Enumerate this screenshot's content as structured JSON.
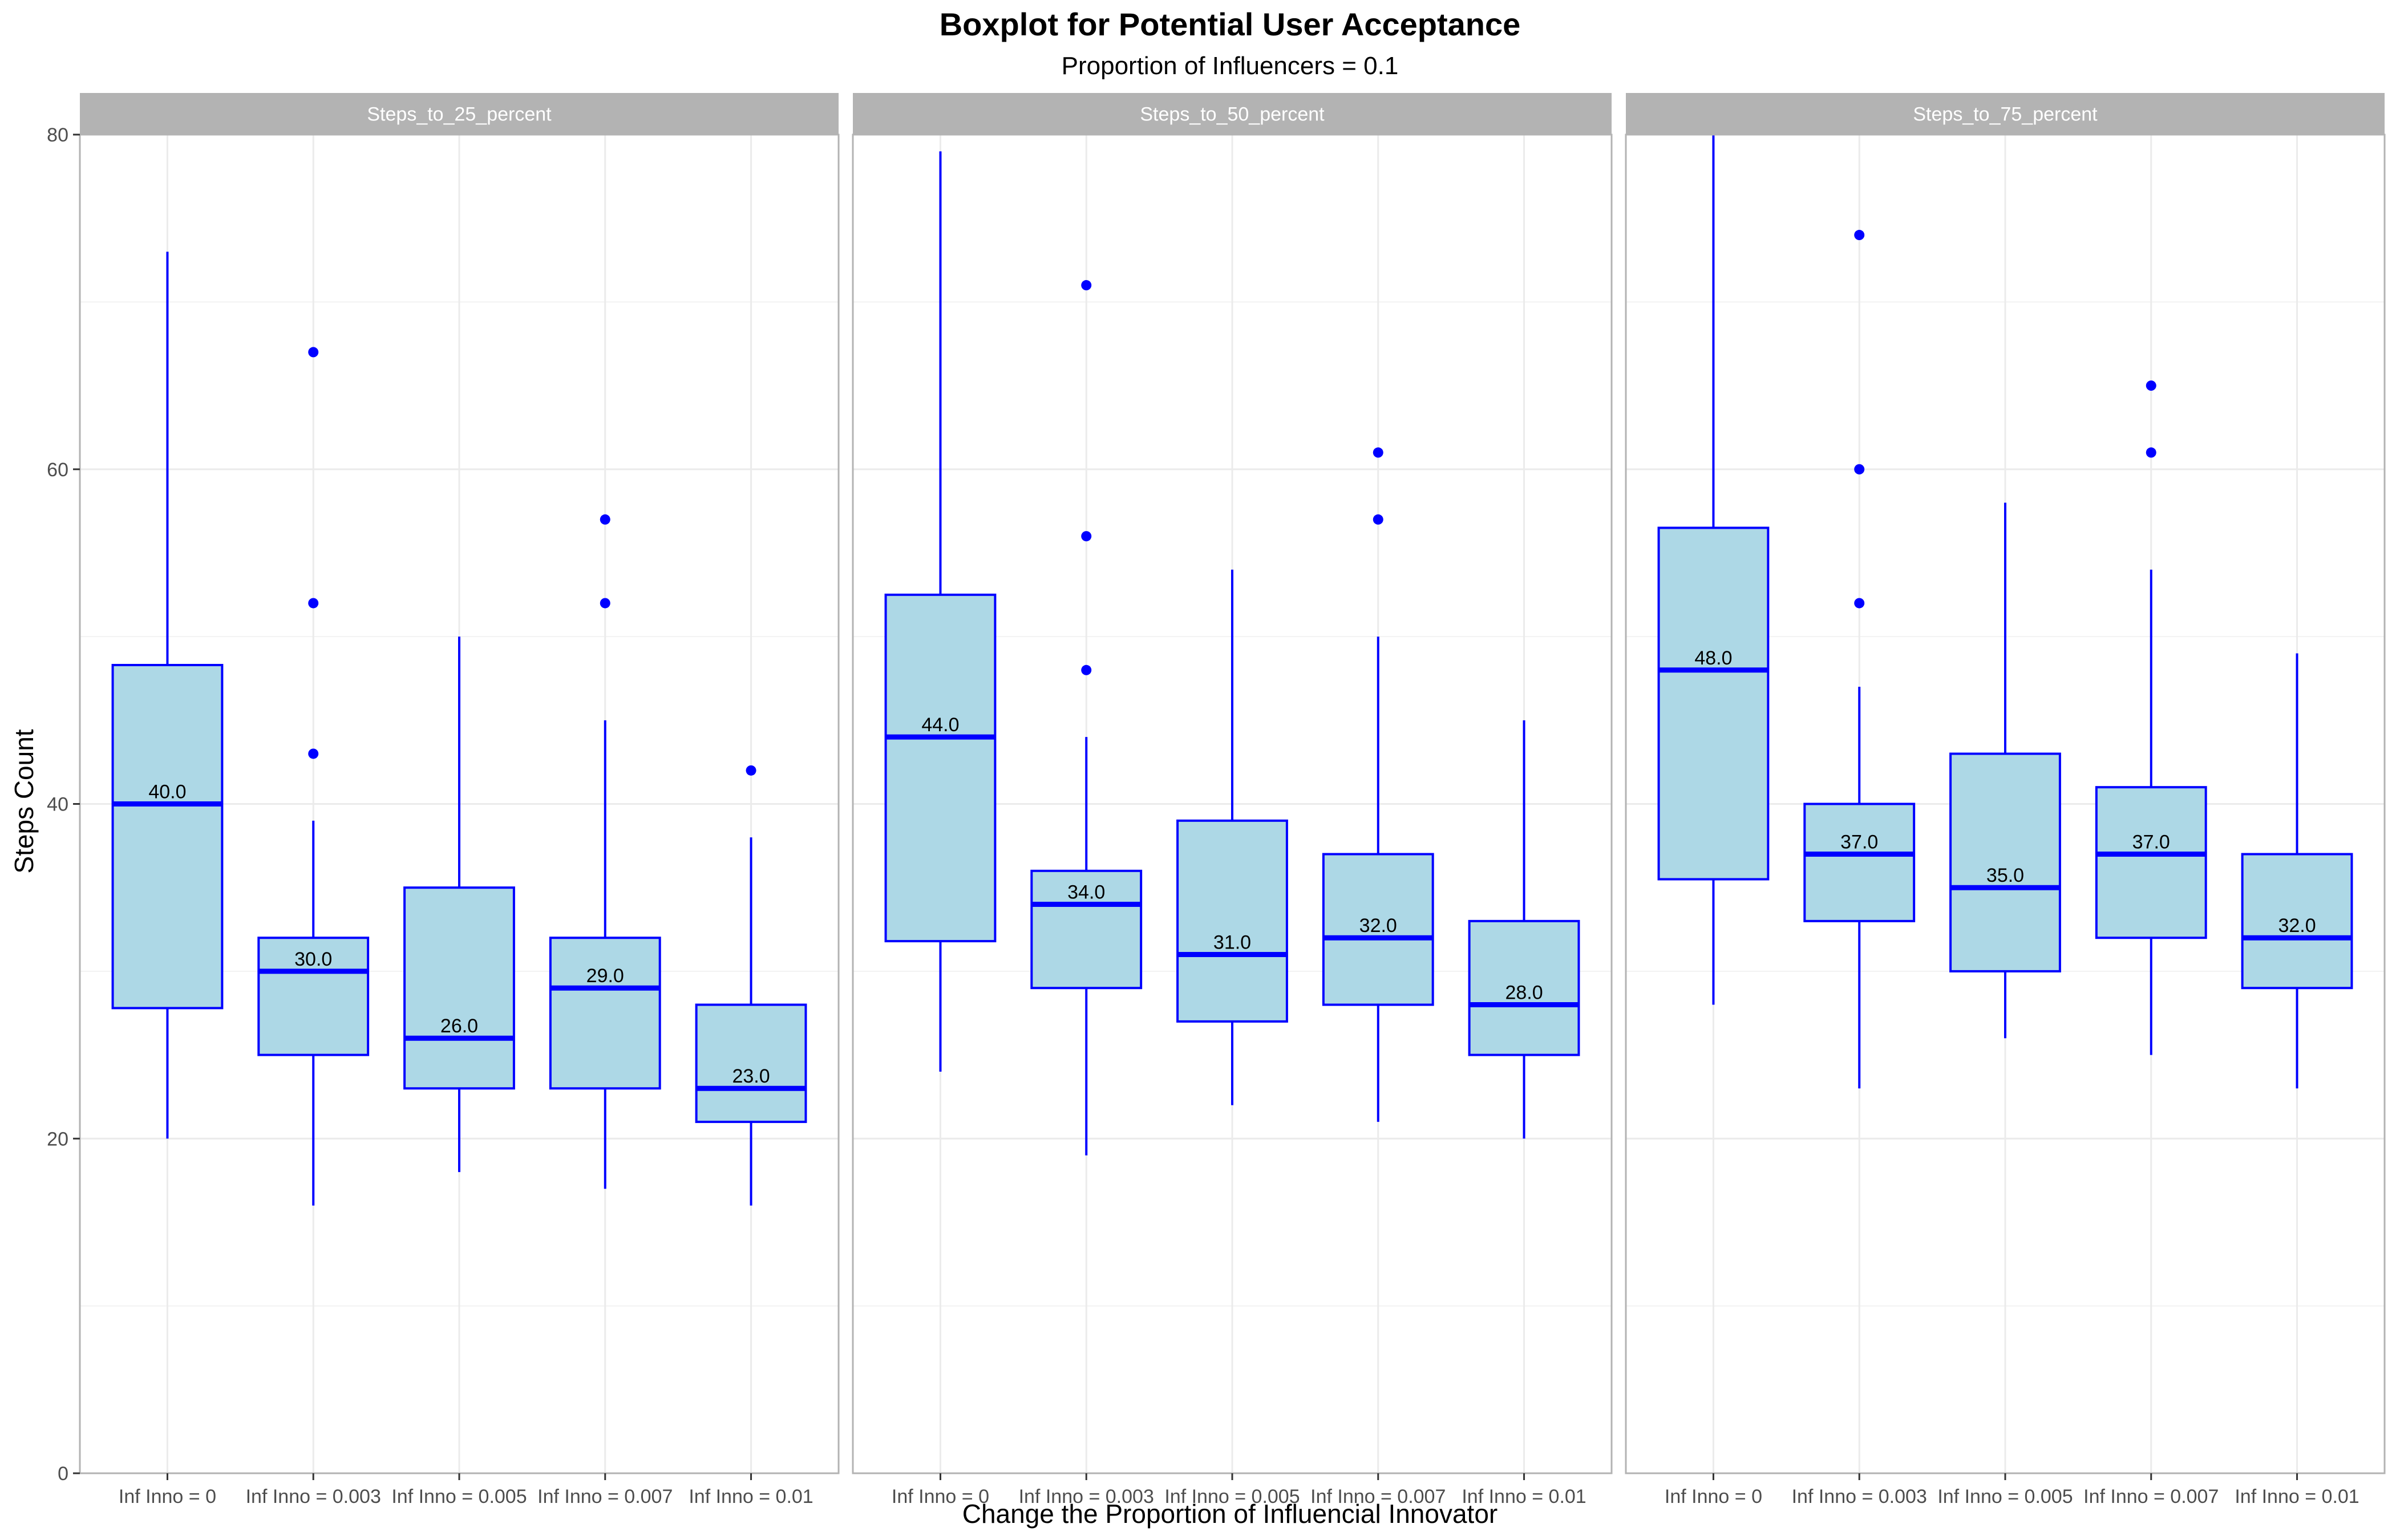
{
  "chart_data": {
    "type": "boxplot",
    "title": "Boxplot for Potential User Acceptance",
    "subtitle": "Proportion of Influencers = 0.1",
    "xlabel": "Change the Proportion of Influencial Innovator",
    "ylabel": "Steps Count",
    "ylim": [
      0,
      80
    ],
    "yticks": [
      "0",
      "20",
      "40",
      "60",
      "80"
    ],
    "categories": [
      "Inf Inno = 0",
      "Inf Inno = 0.003",
      "Inf Inno = 0.005",
      "Inf Inno = 0.007",
      "Inf Inno = 0.01"
    ],
    "grid": true,
    "colors": {
      "box_fill": "#add8e6",
      "box_line": "#0000ff",
      "strip": "#b3b3b3",
      "grid": "#ebebeb"
    },
    "panels": [
      {
        "name": "Steps_to_25_percent",
        "boxes": [
          {
            "category": "Inf Inno = 0",
            "whisker_low": 20,
            "q1": 27.8,
            "median": 40,
            "q3": 48.3,
            "whisker_high": 73,
            "outliers": [],
            "median_label": "40.0"
          },
          {
            "category": "Inf Inno = 0.003",
            "whisker_low": 16,
            "q1": 25,
            "median": 30,
            "q3": 32,
            "whisker_high": 39,
            "outliers": [
              43,
              52,
              67
            ],
            "median_label": "30.0"
          },
          {
            "category": "Inf Inno = 0.005",
            "whisker_low": 18,
            "q1": 23,
            "median": 26,
            "q3": 35,
            "whisker_high": 50,
            "outliers": [],
            "median_label": "26.0"
          },
          {
            "category": "Inf Inno = 0.007",
            "whisker_low": 17,
            "q1": 23,
            "median": 29,
            "q3": 32,
            "whisker_high": 45,
            "outliers": [
              52,
              57
            ],
            "median_label": "29.0"
          },
          {
            "category": "Inf Inno = 0.01",
            "whisker_low": 16,
            "q1": 21,
            "median": 23,
            "q3": 28,
            "whisker_high": 38,
            "outliers": [
              42
            ],
            "median_label": "23.0"
          }
        ]
      },
      {
        "name": "Steps_to_50_percent",
        "boxes": [
          {
            "category": "Inf Inno = 0",
            "whisker_low": 24,
            "q1": 31.8,
            "median": 44,
            "q3": 52.5,
            "whisker_high": 79,
            "outliers": [],
            "median_label": "44.0"
          },
          {
            "category": "Inf Inno = 0.003",
            "whisker_low": 19,
            "q1": 29,
            "median": 34,
            "q3": 36,
            "whisker_high": 44,
            "outliers": [
              48,
              56,
              71
            ],
            "median_label": "34.0"
          },
          {
            "category": "Inf Inno = 0.005",
            "whisker_low": 22,
            "q1": 27,
            "median": 31,
            "q3": 39,
            "whisker_high": 54,
            "outliers": [],
            "median_label": "31.0"
          },
          {
            "category": "Inf Inno = 0.007",
            "whisker_low": 21,
            "q1": 28,
            "median": 32,
            "q3": 37,
            "whisker_high": 50,
            "outliers": [
              57,
              61
            ],
            "median_label": "32.0"
          },
          {
            "category": "Inf Inno = 0.01",
            "whisker_low": 20,
            "q1": 25,
            "median": 28,
            "q3": 33,
            "whisker_high": 45,
            "outliers": [],
            "median_label": "28.0"
          }
        ]
      },
      {
        "name": "Steps_to_75_percent",
        "boxes": [
          {
            "category": "Inf Inno = 0",
            "whisker_low": 28,
            "q1": 35.5,
            "median": 48,
            "q3": 56.5,
            "whisker_high": 80,
            "outliers": [],
            "median_label": "48.0"
          },
          {
            "category": "Inf Inno = 0.003",
            "whisker_low": 23,
            "q1": 33,
            "median": 37,
            "q3": 40,
            "whisker_high": 47,
            "outliers": [
              52,
              60,
              74
            ],
            "median_label": "37.0"
          },
          {
            "category": "Inf Inno = 0.005",
            "whisker_low": 26,
            "q1": 30,
            "median": 35,
            "q3": 43,
            "whisker_high": 58,
            "outliers": [],
            "median_label": "35.0"
          },
          {
            "category": "Inf Inno = 0.007",
            "whisker_low": 25,
            "q1": 32,
            "median": 37,
            "q3": 41,
            "whisker_high": 54,
            "outliers": [
              61,
              65
            ],
            "median_label": "37.0"
          },
          {
            "category": "Inf Inno = 0.01",
            "whisker_low": 23,
            "q1": 29,
            "median": 32,
            "q3": 37,
            "whisker_high": 49,
            "outliers": [],
            "median_label": "32.0"
          }
        ]
      }
    ]
  }
}
